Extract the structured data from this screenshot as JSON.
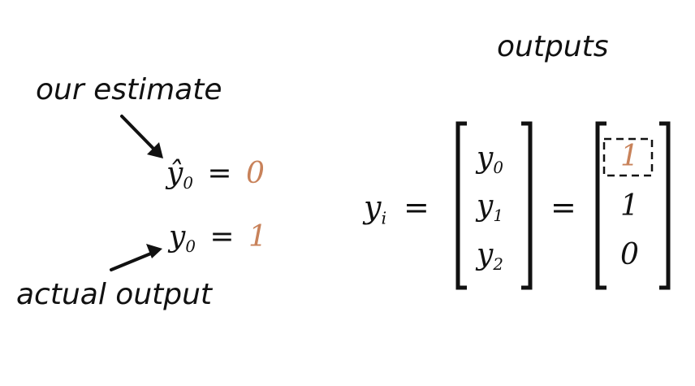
{
  "labels": {
    "outputs": "outputs",
    "our_estimate": "our estimate",
    "actual_output": "actual output"
  },
  "left": {
    "estimate_var": "ŷ",
    "estimate_sub": "0",
    "estimate_value": "0",
    "actual_var": "y",
    "actual_sub": "0",
    "actual_value": "1",
    "equals": "="
  },
  "equation": {
    "lhs_var": "y",
    "lhs_sub": "i",
    "equals": "=",
    "symbolic_vector": [
      {
        "var": "y",
        "sub": "0"
      },
      {
        "var": "y",
        "sub": "1"
      },
      {
        "var": "y",
        "sub": "2"
      }
    ],
    "numeric_vector": [
      "1",
      "1",
      "0"
    ],
    "highlighted_index": 0
  },
  "colors": {
    "ink": "#111111",
    "accent": "#c8825a"
  },
  "icons": [
    "arrow-icon",
    "arrow-icon",
    "left-bracket",
    "right-bracket",
    "dashed-box"
  ]
}
